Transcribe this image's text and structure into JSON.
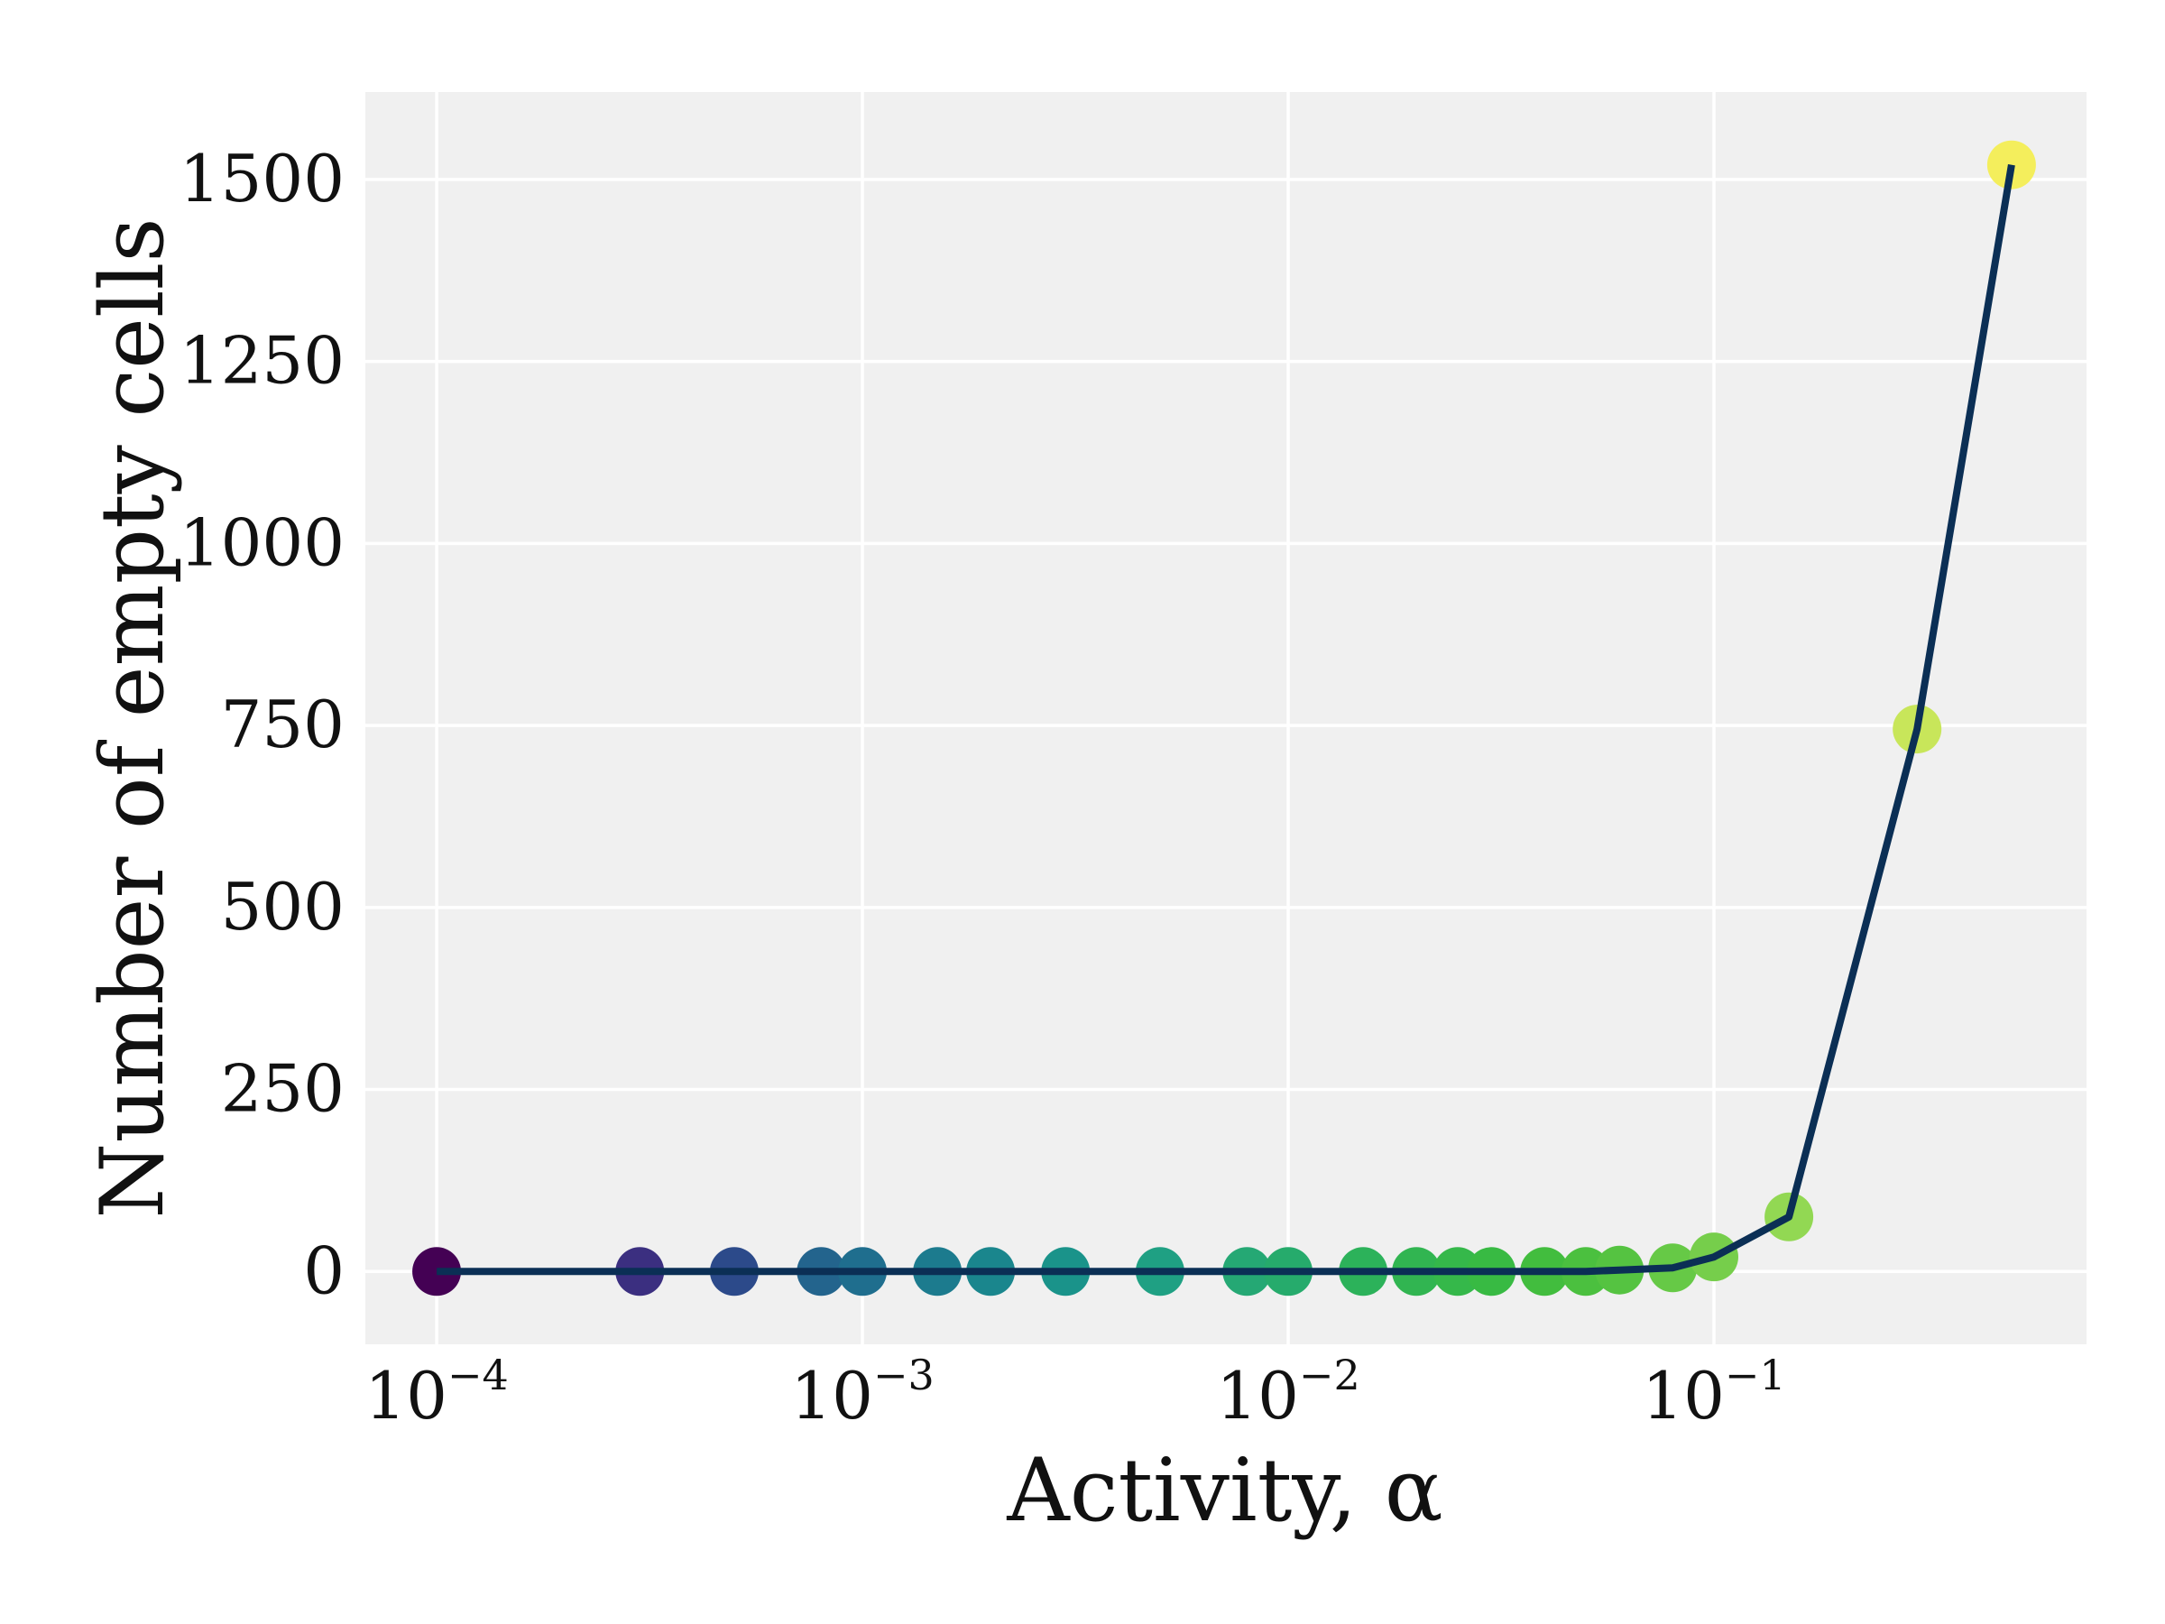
{
  "chart_data": {
    "type": "scatter",
    "xlabel": "Activity, α",
    "ylabel": "Number of empty cells",
    "xscale": "log",
    "xlim": [
      6.8e-05,
      0.75
    ],
    "ylim": [
      -100,
      1620
    ],
    "grid": true,
    "background": "#f0f0f0",
    "x_ticks": [
      {
        "base": "10",
        "exp": "−4",
        "value": 0.0001
      },
      {
        "base": "10",
        "exp": "−3",
        "value": 0.001
      },
      {
        "base": "10",
        "exp": "−2",
        "value": 0.01
      },
      {
        "base": "10",
        "exp": "−1",
        "value": 0.1
      }
    ],
    "y_ticks": [
      {
        "label": "0",
        "value": 0
      },
      {
        "label": "250",
        "value": 250
      },
      {
        "label": "500",
        "value": 500
      },
      {
        "label": "750",
        "value": 750
      },
      {
        "label": "1000",
        "value": 1000
      },
      {
        "label": "1250",
        "value": 1250
      },
      {
        "label": "1500",
        "value": 1500
      }
    ],
    "points": [
      {
        "x": 0.0001,
        "y": 0,
        "color": "#440154"
      },
      {
        "x": 0.0003,
        "y": 0,
        "color": "#3b2f80"
      },
      {
        "x": 0.0005,
        "y": 0,
        "color": "#2c4a8a"
      },
      {
        "x": 0.0008,
        "y": 0,
        "color": "#23648d"
      },
      {
        "x": 0.001,
        "y": 0,
        "color": "#1f6e8e"
      },
      {
        "x": 0.0015,
        "y": 0,
        "color": "#1c7b8e"
      },
      {
        "x": 0.002,
        "y": 0,
        "color": "#1a868d"
      },
      {
        "x": 0.003,
        "y": 0,
        "color": "#1a938a"
      },
      {
        "x": 0.005,
        "y": 0,
        "color": "#1fa083"
      },
      {
        "x": 0.008,
        "y": 0,
        "color": "#25a874"
      },
      {
        "x": 0.01,
        "y": 0,
        "color": "#26ab6c"
      },
      {
        "x": 0.015,
        "y": 0,
        "color": "#2cb25a"
      },
      {
        "x": 0.02,
        "y": 0,
        "color": "#31b551"
      },
      {
        "x": 0.025,
        "y": 0,
        "color": "#35b84a"
      },
      {
        "x": 0.03,
        "y": 0,
        "color": "#38ba43"
      },
      {
        "x": 0.04,
        "y": 0,
        "color": "#42bd3e"
      },
      {
        "x": 0.05,
        "y": 0,
        "color": "#4bc03f"
      },
      {
        "x": 0.06,
        "y": 2,
        "color": "#55c341"
      },
      {
        "x": 0.08,
        "y": 5,
        "color": "#66c946"
      },
      {
        "x": 0.1,
        "y": 20,
        "color": "#76ce4b"
      },
      {
        "x": 0.15,
        "y": 75,
        "color": "#92d853"
      },
      {
        "x": 0.3,
        "y": 745,
        "color": "#c8e65a"
      },
      {
        "x": 0.5,
        "y": 1520,
        "color": "#f4ee5c"
      }
    ],
    "line_color": "#0b2f55"
  }
}
